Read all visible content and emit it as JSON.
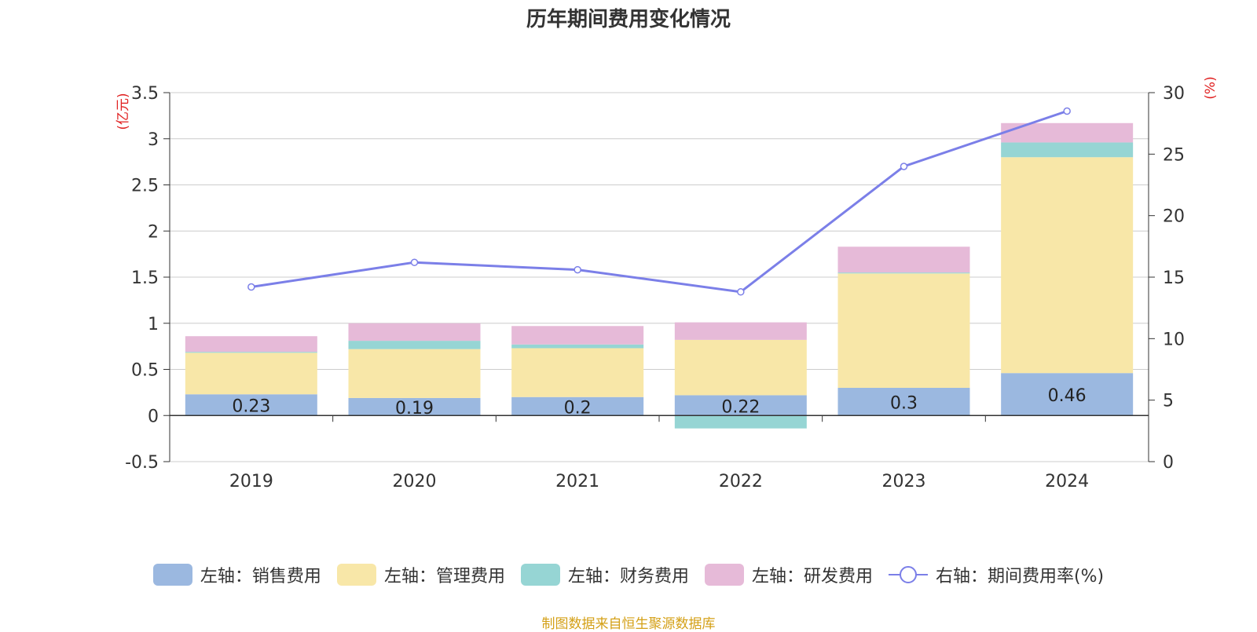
{
  "chart_data": {
    "type": "bar",
    "title": "历年期间费用变化情况",
    "categories": [
      "2019",
      "2020",
      "2021",
      "2022",
      "2023",
      "2024"
    ],
    "left_axis": {
      "unit": "(亿元)",
      "ylim": [
        -0.5,
        3.5
      ],
      "ticks": [
        -0.5,
        0,
        0.5,
        1,
        1.5,
        2,
        2.5,
        3,
        3.5
      ]
    },
    "right_axis": {
      "unit": "(%)",
      "ylim": [
        0,
        30
      ],
      "ticks": [
        0,
        5,
        10,
        15,
        20,
        25,
        30
      ]
    },
    "series": [
      {
        "name": "左轴：销售费用",
        "type": "bar",
        "axis": "left",
        "color": "#9bb8e0",
        "values": [
          0.23,
          0.19,
          0.2,
          0.22,
          0.3,
          0.46
        ],
        "show_labels": true
      },
      {
        "name": "左轴：管理费用",
        "type": "bar",
        "axis": "left",
        "color": "#f8e7a8",
        "values": [
          0.45,
          0.53,
          0.53,
          0.6,
          1.24,
          2.34
        ]
      },
      {
        "name": "左轴：财务费用",
        "type": "bar",
        "axis": "left",
        "color": "#96d5d4",
        "values": [
          0.01,
          0.09,
          0.04,
          -0.14,
          0.01,
          0.16
        ]
      },
      {
        "name": "左轴：研发费用",
        "type": "bar",
        "axis": "left",
        "color": "#e6bad8",
        "values": [
          0.17,
          0.19,
          0.2,
          0.19,
          0.28,
          0.21
        ]
      },
      {
        "name": "右轴：期间费用率(%)",
        "type": "line",
        "axis": "right",
        "color": "#7b7fe8",
        "values": [
          14.2,
          16.2,
          15.6,
          13.8,
          24.0,
          28.5
        ]
      }
    ],
    "grid": true,
    "legend_position": "bottom"
  },
  "source": "制图数据来自恒生聚源数据库"
}
